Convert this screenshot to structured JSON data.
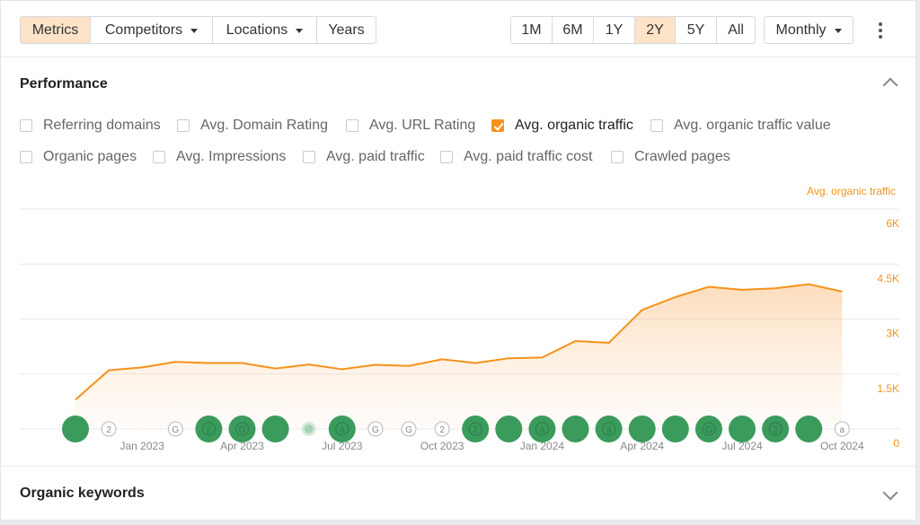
{
  "toolbar": {
    "left_tabs": [
      {
        "label": "Metrics",
        "active": true,
        "dropdown": false
      },
      {
        "label": "Competitors",
        "active": false,
        "dropdown": true
      },
      {
        "label": "Locations",
        "active": false,
        "dropdown": true
      },
      {
        "label": "Years",
        "active": false,
        "dropdown": false
      }
    ],
    "ranges": [
      {
        "label": "1M",
        "active": false
      },
      {
        "label": "6M",
        "active": false
      },
      {
        "label": "1Y",
        "active": false
      },
      {
        "label": "2Y",
        "active": true
      },
      {
        "label": "5Y",
        "active": false
      },
      {
        "label": "All",
        "active": false
      }
    ],
    "interval": "Monthly"
  },
  "performance": {
    "title": "Performance",
    "metrics_row1": [
      {
        "label": "Referring domains",
        "checked": false
      },
      {
        "label": "Avg. Domain Rating",
        "checked": false
      },
      {
        "label": "Avg. URL Rating",
        "checked": false
      },
      {
        "label": "Avg. organic traffic",
        "checked": true
      },
      {
        "label": "Avg. organic traffic value",
        "checked": false
      }
    ],
    "metrics_row2": [
      {
        "label": "Organic pages",
        "checked": false
      },
      {
        "label": "Avg. Impressions",
        "checked": false
      },
      {
        "label": "Avg. paid traffic",
        "checked": false
      },
      {
        "label": "Avg. paid traffic cost",
        "checked": false
      },
      {
        "label": "Crawled pages",
        "checked": false
      }
    ]
  },
  "chart_data": {
    "type": "area",
    "series": [
      {
        "name": "Avg. organic traffic",
        "color": "#f5921b",
        "values": [
          800,
          1600,
          1680,
          1830,
          1800,
          1800,
          1650,
          1760,
          1630,
          1750,
          1720,
          1900,
          1800,
          1930,
          1950,
          2400,
          2350,
          3250,
          3600,
          3880,
          3800,
          3840,
          3950,
          3750
        ]
      }
    ],
    "x_ticks": [
      "Jan 2023",
      "Apr 2023",
      "Jul 2023",
      "Oct 2023",
      "Jan 2024",
      "Apr 2024",
      "Jul 2024",
      "Oct 2024"
    ],
    "y_ticks": [
      "0",
      "1.5K",
      "3K",
      "4.5K",
      "6K"
    ],
    "ylim": [
      0,
      6000
    ],
    "grid": true,
    "events": [
      "big",
      "2",
      "",
      "G",
      "big2",
      "bigG",
      "big",
      "dot",
      "bigA",
      "G",
      "G",
      "2",
      "big2",
      "big",
      "bigA",
      "big",
      "big3",
      "big",
      "big",
      "bigG",
      "big",
      "big2",
      "big",
      "a"
    ]
  },
  "organic_keywords": {
    "title": "Organic keywords"
  }
}
